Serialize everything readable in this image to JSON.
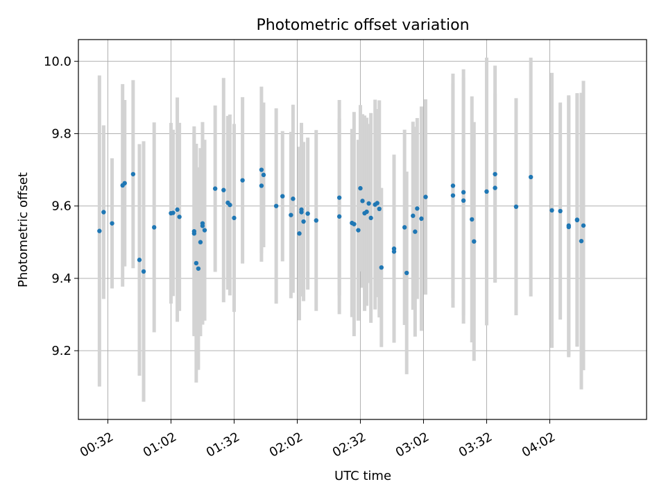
{
  "chart_data": {
    "type": "scatter",
    "title": "Photometric offset variation",
    "xlabel": "UTC time",
    "ylabel": "Photometric offset",
    "x_unit": "UTC time (HH:MM)",
    "xlim": [
      "00:18",
      "04:48"
    ],
    "ylim": [
      9.01,
      10.06
    ],
    "x_ticks": [
      "00:32",
      "01:02",
      "01:32",
      "02:02",
      "02:32",
      "03:02",
      "03:32",
      "04:02"
    ],
    "y_ticks": [
      9.2,
      9.4,
      9.6,
      9.8,
      10.0
    ],
    "y_tick_labels": [
      "9.2",
      "9.4",
      "9.6",
      "9.8",
      "10.0"
    ],
    "grid": true,
    "error_bars": true,
    "colors": {
      "points": "#1f77b4",
      "error_bars": "#d3d3d3",
      "grid": "#b0b0b0"
    },
    "points": [
      {
        "t": "00:28",
        "y": 9.531,
        "err": 0.43
      },
      {
        "t": "00:30",
        "y": 9.583,
        "err": 0.24
      },
      {
        "t": "00:34",
        "y": 9.552,
        "err": 0.18
      },
      {
        "t": "00:39",
        "y": 9.657,
        "err": 0.28
      },
      {
        "t": "00:40",
        "y": 9.663,
        "err": 0.23
      },
      {
        "t": "00:44",
        "y": 9.688,
        "err": 0.26
      },
      {
        "t": "00:47",
        "y": 9.451,
        "err": 0.32
      },
      {
        "t": "00:49",
        "y": 9.419,
        "err": 0.36
      },
      {
        "t": "00:54",
        "y": 9.541,
        "err": 0.29
      },
      {
        "t": "01:02",
        "y": 9.58,
        "err": 0.25
      },
      {
        "t": "01:03",
        "y": 9.581,
        "err": 0.23
      },
      {
        "t": "01:05",
        "y": 9.59,
        "err": 0.31
      },
      {
        "t": "01:06",
        "y": 9.57,
        "err": 0.26
      },
      {
        "t": "01:13",
        "y": 9.53,
        "err": 0.29
      },
      {
        "t": "01:13",
        "y": 9.524,
        "err": 0.28
      },
      {
        "t": "01:14",
        "y": 9.442,
        "err": 0.33
      },
      {
        "t": "01:15",
        "y": 9.427,
        "err": 0.28
      },
      {
        "t": "01:16",
        "y": 9.5,
        "err": 0.26
      },
      {
        "t": "01:17",
        "y": 9.552,
        "err": 0.28
      },
      {
        "t": "01:17",
        "y": 9.545,
        "err": 0.27
      },
      {
        "t": "01:18",
        "y": 9.533,
        "err": 0.25
      },
      {
        "t": "01:23",
        "y": 9.648,
        "err": 0.23
      },
      {
        "t": "01:27",
        "y": 9.644,
        "err": 0.31
      },
      {
        "t": "01:29",
        "y": 9.609,
        "err": 0.24
      },
      {
        "t": "01:30",
        "y": 9.603,
        "err": 0.25
      },
      {
        "t": "01:32",
        "y": 9.567,
        "err": 0.26
      },
      {
        "t": "01:36",
        "y": 9.671,
        "err": 0.23
      },
      {
        "t": "01:45",
        "y": 9.656,
        "err": 0.21
      },
      {
        "t": "01:45",
        "y": 9.7,
        "err": 0.23
      },
      {
        "t": "01:46",
        "y": 9.686,
        "err": 0.2
      },
      {
        "t": "01:52",
        "y": 9.6,
        "err": 0.27
      },
      {
        "t": "01:55",
        "y": 9.627,
        "err": 0.18
      },
      {
        "t": "01:59",
        "y": 9.575,
        "err": 0.23
      },
      {
        "t": "02:00",
        "y": 9.62,
        "err": 0.26
      },
      {
        "t": "02:03",
        "y": 9.524,
        "err": 0.24
      },
      {
        "t": "02:04",
        "y": 9.59,
        "err": 0.24
      },
      {
        "t": "02:04",
        "y": 9.583,
        "err": 0.23
      },
      {
        "t": "02:05",
        "y": 9.557,
        "err": 0.22
      },
      {
        "t": "02:07",
        "y": 9.579,
        "err": 0.21
      },
      {
        "t": "02:11",
        "y": 9.56,
        "err": 0.25
      },
      {
        "t": "02:22",
        "y": 9.623,
        "err": 0.27
      },
      {
        "t": "02:22",
        "y": 9.571,
        "err": 0.27
      },
      {
        "t": "02:28",
        "y": 9.553,
        "err": 0.26
      },
      {
        "t": "02:29",
        "y": 9.55,
        "err": 0.31
      },
      {
        "t": "02:31",
        "y": 9.533,
        "err": 0.25
      },
      {
        "t": "02:32",
        "y": 9.649,
        "err": 0.23
      },
      {
        "t": "02:33",
        "y": 9.614,
        "err": 0.24
      },
      {
        "t": "02:34",
        "y": 9.58,
        "err": 0.27
      },
      {
        "t": "02:35",
        "y": 9.584,
        "err": 0.26
      },
      {
        "t": "02:36",
        "y": 9.607,
        "err": 0.22
      },
      {
        "t": "02:37",
        "y": 9.567,
        "err": 0.29
      },
      {
        "t": "02:39",
        "y": 9.604,
        "err": 0.29
      },
      {
        "t": "02:40",
        "y": 9.608,
        "err": 0.26
      },
      {
        "t": "02:41",
        "y": 9.592,
        "err": 0.3
      },
      {
        "t": "02:42",
        "y": 9.43,
        "err": 0.22
      },
      {
        "t": "02:48",
        "y": 9.474,
        "err": 0.25
      },
      {
        "t": "02:48",
        "y": 9.482,
        "err": 0.26
      },
      {
        "t": "02:53",
        "y": 9.541,
        "err": 0.27
      },
      {
        "t": "02:54",
        "y": 9.415,
        "err": 0.28
      },
      {
        "t": "02:57",
        "y": 9.573,
        "err": 0.26
      },
      {
        "t": "02:58",
        "y": 9.529,
        "err": 0.29
      },
      {
        "t": "02:59",
        "y": 9.593,
        "err": 0.25
      },
      {
        "t": "03:01",
        "y": 9.565,
        "err": 0.31
      },
      {
        "t": "03:03",
        "y": 9.625,
        "err": 0.27
      },
      {
        "t": "03:16",
        "y": 9.656,
        "err": 0.31
      },
      {
        "t": "03:16",
        "y": 9.629,
        "err": 0.31
      },
      {
        "t": "03:21",
        "y": 9.638,
        "err": 0.34
      },
      {
        "t": "03:21",
        "y": 9.615,
        "err": 0.34
      },
      {
        "t": "03:25",
        "y": 9.563,
        "err": 0.34
      },
      {
        "t": "03:26",
        "y": 9.502,
        "err": 0.33
      },
      {
        "t": "03:32",
        "y": 9.64,
        "err": 0.37
      },
      {
        "t": "03:36",
        "y": 9.65,
        "err": 0.26
      },
      {
        "t": "03:36",
        "y": 9.688,
        "err": 0.3
      },
      {
        "t": "03:46",
        "y": 9.598,
        "err": 0.3
      },
      {
        "t": "03:53",
        "y": 9.68,
        "err": 0.33
      },
      {
        "t": "04:03",
        "y": 9.588,
        "err": 0.38
      },
      {
        "t": "04:07",
        "y": 9.586,
        "err": 0.3
      },
      {
        "t": "04:11",
        "y": 9.546,
        "err": 0.36
      },
      {
        "t": "04:11",
        "y": 9.542,
        "err": 0.36
      },
      {
        "t": "04:15",
        "y": 9.561,
        "err": 0.35
      },
      {
        "t": "04:15",
        "y": 9.562,
        "err": 0.35
      },
      {
        "t": "04:17",
        "y": 9.503,
        "err": 0.41
      },
      {
        "t": "04:18",
        "y": 9.546,
        "err": 0.4
      }
    ]
  }
}
